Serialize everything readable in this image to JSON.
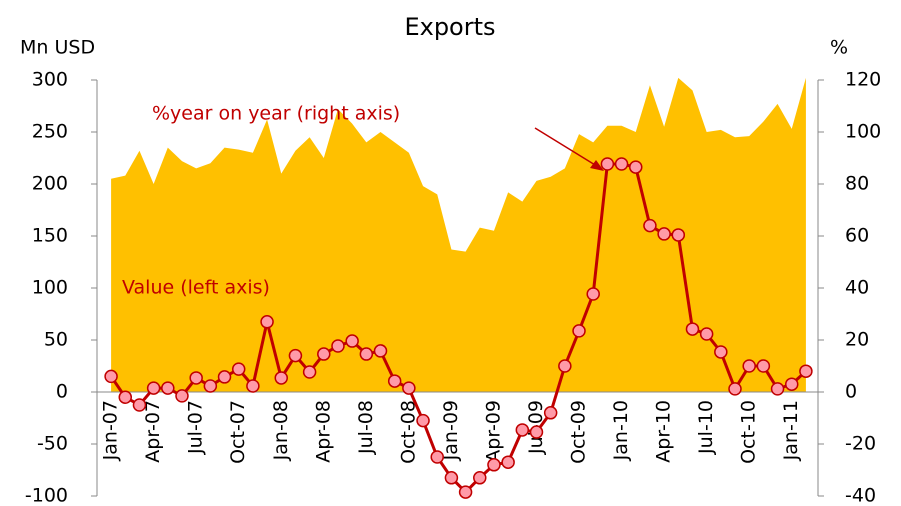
{
  "chart_data": {
    "type": "area_line",
    "title": "Exports",
    "y_label": "Mn USD",
    "y2_label": "%",
    "annotations": [
      "%year on year (right axis)",
      "Value (left axis)"
    ],
    "categories": [
      "Jan-07",
      null,
      null,
      "Apr-07",
      null,
      null,
      "Jul-07",
      null,
      null,
      "Oct-07",
      null,
      null,
      "Jan-08",
      null,
      null,
      "Apr-08",
      null,
      null,
      "Jul-08",
      null,
      null,
      "Oct-08",
      null,
      null,
      "Jan-09",
      null,
      null,
      "Apr-09",
      null,
      null,
      "Jul-09",
      null,
      null,
      "Oct-09",
      null,
      null,
      "Jan-10",
      null,
      null,
      "Apr-10",
      null,
      null,
      "Jul-10",
      null,
      null,
      "Oct-10",
      null,
      null,
      "Jan-11",
      null
    ],
    "series": [
      {
        "name": "Value (left axis)",
        "color": "#ffc000",
        "axis": "y",
        "values": [
          205,
          208,
          232,
          200,
          235,
          222,
          215,
          220,
          235,
          233,
          230,
          262,
          210,
          232,
          245,
          225,
          272,
          258,
          240,
          250,
          240,
          230,
          198,
          190,
          137,
          135,
          158,
          155,
          192,
          183,
          203,
          207,
          215,
          248,
          240,
          256,
          256,
          250,
          295,
          255,
          302,
          290,
          250,
          252,
          245,
          246,
          260,
          277,
          253,
          302
        ]
      },
      {
        "name": "%year on year (right axis)",
        "color": "#c00000",
        "marker_color": "#ff9aa8",
        "axis": "y2",
        "values": [
          6,
          -2,
          -5,
          1.5,
          1.5,
          -1.5,
          5.4,
          2.3,
          5.8,
          8.8,
          2.3,
          27,
          5.4,
          14,
          7.7,
          14.6,
          17.7,
          19.6,
          14.6,
          15.8,
          4.2,
          1.5,
          -11,
          -25,
          -33,
          -38.5,
          -33,
          -28,
          -27,
          -14.6,
          -15.4,
          -8,
          10,
          23.5,
          37.7,
          87.7,
          87.7,
          86.5,
          64,
          60.8,
          60.4,
          24.2,
          22.3,
          15.4,
          1.2,
          10,
          10,
          1.2,
          3,
          8
        ]
      }
    ],
    "ylim": [
      -100,
      300
    ],
    "yticks": [
      -100,
      -50,
      0,
      50,
      100,
      150,
      200,
      250,
      300
    ],
    "y2lim": [
      -40,
      120
    ],
    "y2ticks": [
      -40,
      -20,
      0,
      20,
      40,
      60,
      80,
      100,
      120
    ]
  }
}
